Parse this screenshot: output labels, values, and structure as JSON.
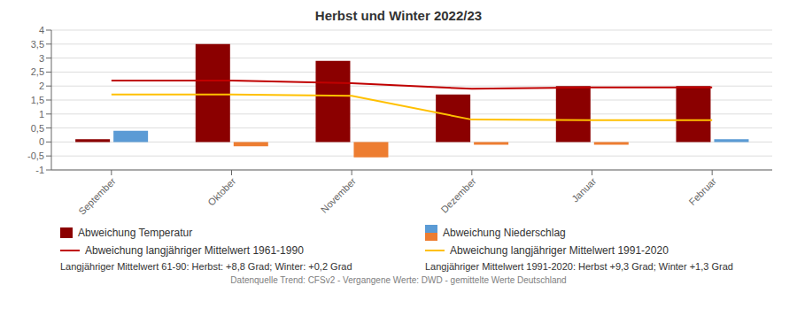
{
  "chart_data": {
    "type": "bar",
    "title": "Herbst und Winter 2022/23",
    "categories": [
      "September",
      "Oktober",
      "November",
      "Dezember",
      "Januar",
      "Februar"
    ],
    "series": [
      {
        "name": "Abweichung Temperatur",
        "type": "bar",
        "color": "#8B0000",
        "values": [
          0.1,
          3.5,
          2.9,
          1.7,
          2.0,
          2.0
        ]
      },
      {
        "name": "Abweichung Niederschlag",
        "type": "bar",
        "color": "#5B9BD5",
        "values": [
          0.4,
          0.0,
          0.0,
          0.0,
          0.0,
          0.1
        ]
      },
      {
        "type": "bar",
        "color": "#ED7D31",
        "values": [
          0.0,
          -0.15,
          -0.55,
          -0.1,
          -0.1,
          0.0
        ]
      },
      {
        "name": "Abweichung langjähriger Mittelwert 1961-1990",
        "type": "line",
        "color": "#C00000",
        "values": [
          2.2,
          2.2,
          2.1,
          1.9,
          1.95,
          1.95
        ]
      },
      {
        "name": "Abweichung langjähriger Mittelwert 1991-2020",
        "type": "line",
        "color": "#FFC000",
        "values": [
          1.7,
          1.7,
          1.65,
          0.8,
          0.78,
          0.78
        ]
      }
    ],
    "ylim": [
      -1,
      4
    ],
    "yticks": [
      -1,
      {
        "value": -0.5,
        "label": "-0,5"
      },
      0,
      {
        "value": 0.5,
        "label": "0,5"
      },
      1,
      {
        "value": 1.5,
        "label": "1,5"
      },
      2,
      {
        "value": 2.5,
        "label": "2,5"
      },
      3,
      {
        "value": 3.5,
        "label": "3,5"
      },
      4
    ],
    "grid": true,
    "annotations": [
      "Langjähriger Mittelwert 61-90: Herbst: +8,8 Grad; Winter: +0,2 Grad",
      "Langjähriger Mittelwert 1991-2020: Herbst +9,3 Grad; Winter +1,3 Grad",
      "Datenquelle Trend: CFSv2 - Vergangene Werte: DWD - gemittelte Werte Deutschland"
    ]
  }
}
